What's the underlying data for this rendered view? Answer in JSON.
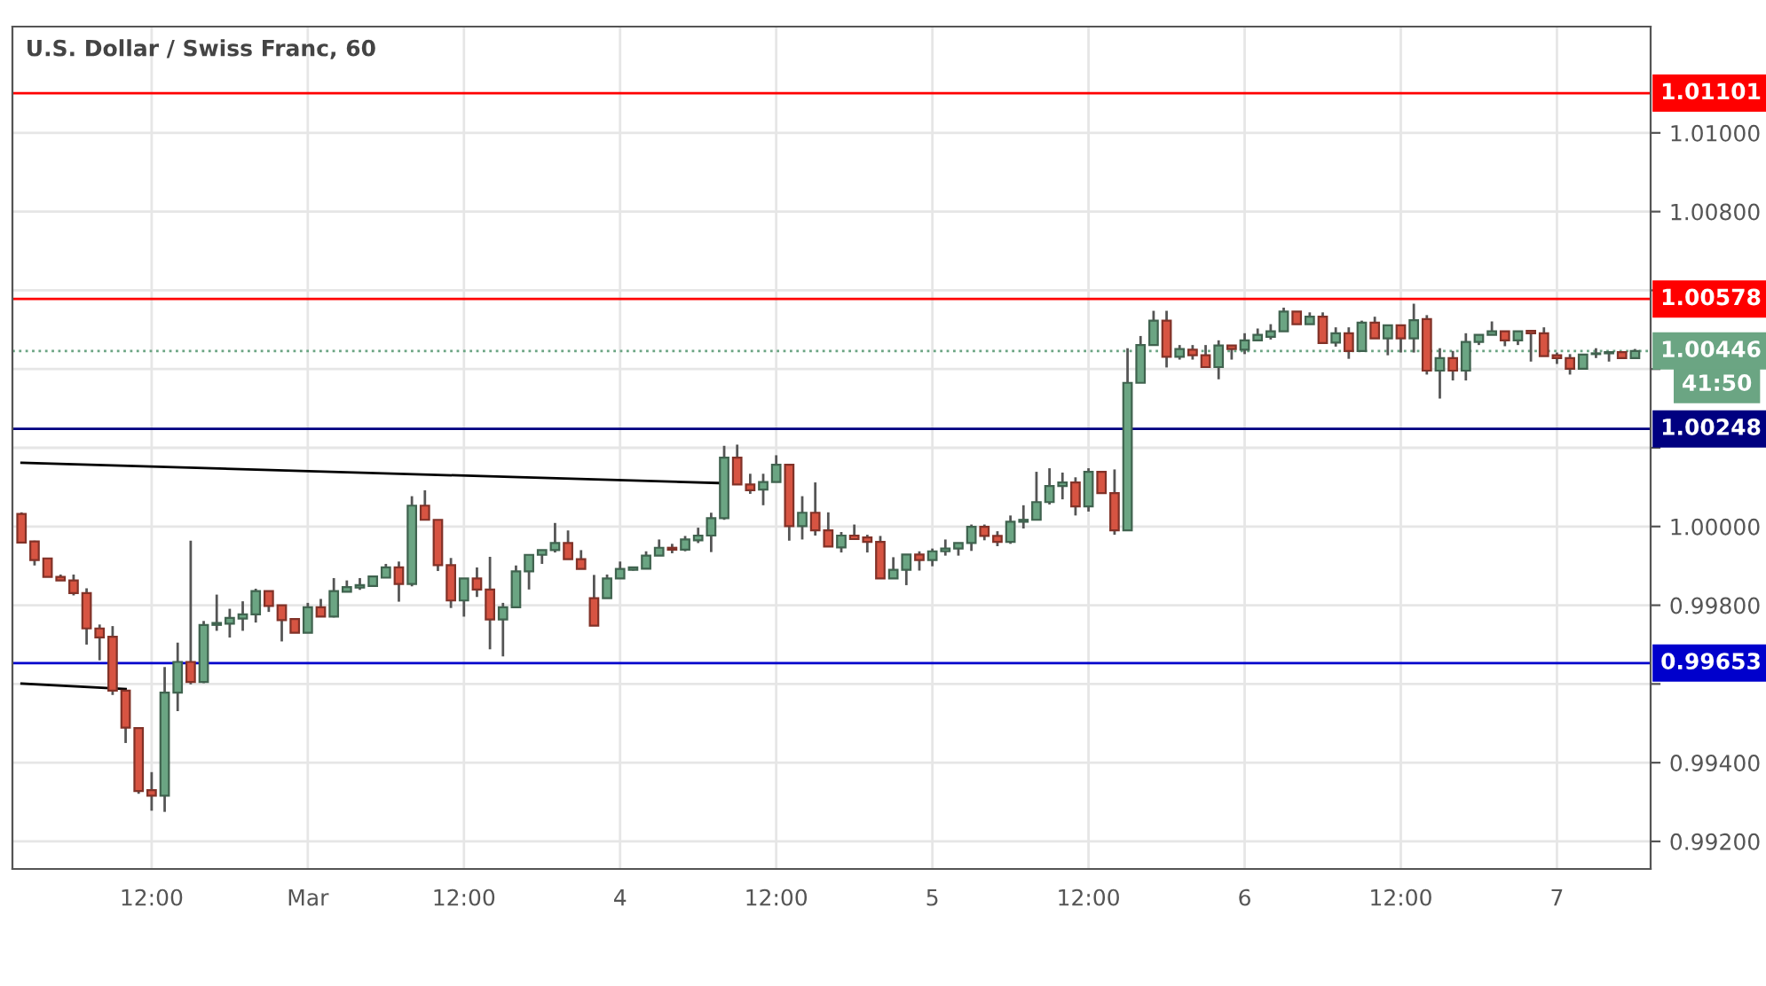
{
  "chart_data": {
    "type": "candlestick",
    "title": "U.S. Dollar / Swiss Franc, 60",
    "categories": [
      null,
      null,
      null,
      null,
      null,
      null,
      null,
      null,
      null,
      null,
      "12:00",
      null,
      null,
      null,
      null,
      null,
      null,
      null,
      null,
      null,
      null,
      null,
      "Mar",
      null,
      null,
      null,
      null,
      null,
      null,
      null,
      null,
      null,
      null,
      null,
      "12:00",
      null,
      null,
      null,
      null,
      null,
      null,
      null,
      null,
      null,
      null,
      null,
      "4",
      null,
      null,
      null,
      null,
      null,
      null,
      null,
      null,
      null,
      null,
      null,
      "12:00",
      null,
      null,
      null,
      null,
      null,
      null,
      null,
      null,
      null,
      null,
      null,
      "5",
      null,
      null,
      null,
      null,
      null,
      null,
      null,
      null,
      null,
      null,
      null,
      "12:00",
      null,
      null,
      null,
      null,
      null,
      null,
      null,
      null,
      null,
      null,
      null,
      "6",
      null,
      null,
      null,
      null,
      null,
      null,
      null,
      null,
      null,
      null,
      null,
      "12:00",
      null,
      null,
      null,
      null,
      null,
      null,
      null,
      null,
      null,
      null,
      null,
      "7",
      null,
      null,
      null,
      null,
      null,
      null
    ],
    "ohlc": [
      [
        1.00032,
        1.00036,
        0.99959,
        0.99959
      ],
      [
        0.99962,
        0.99964,
        0.99901,
        0.99915
      ],
      [
        0.99919,
        0.99919,
        0.99872,
        0.99872
      ],
      [
        0.99872,
        0.99878,
        0.99863,
        0.99863
      ],
      [
        0.99863,
        0.99878,
        0.99825,
        0.99831
      ],
      [
        0.99831,
        0.99843,
        0.997,
        0.99741
      ],
      [
        0.99741,
        0.99751,
        0.9966,
        0.99718
      ],
      [
        0.9972,
        0.99747,
        0.99572,
        0.99583
      ],
      [
        0.99583,
        0.99583,
        0.9945,
        0.99489
      ],
      [
        0.99488,
        0.99488,
        0.99321,
        0.99328
      ],
      [
        0.9933,
        0.99376,
        0.99278,
        0.99316
      ],
      [
        0.99316,
        0.99643,
        0.99275,
        0.99578
      ],
      [
        0.99578,
        0.99705,
        0.99531,
        0.99656
      ],
      [
        0.99656,
        0.99964,
        0.99599,
        0.99605
      ],
      [
        0.99605,
        0.9976,
        0.99602,
        0.9975
      ],
      [
        0.9975,
        0.99827,
        0.99735,
        0.99755
      ],
      [
        0.99753,
        0.99791,
        0.99718,
        0.99768
      ],
      [
        0.99766,
        0.9981,
        0.99735,
        0.99777
      ],
      [
        0.99777,
        0.99842,
        0.99756,
        0.99836
      ],
      [
        0.99836,
        0.99836,
        0.99783,
        0.99798
      ],
      [
        0.998,
        0.99801,
        0.99708,
        0.99762
      ],
      [
        0.99765,
        0.99765,
        0.9973,
        0.9973
      ],
      [
        0.9973,
        0.99806,
        0.9973,
        0.99795
      ],
      [
        0.99795,
        0.99816,
        0.99771,
        0.99771
      ],
      [
        0.99771,
        0.99869,
        0.99769,
        0.99836
      ],
      [
        0.99834,
        0.99863,
        0.99833,
        0.99846
      ],
      [
        0.99845,
        0.99869,
        0.99839,
        0.99851
      ],
      [
        0.99849,
        0.99873,
        0.99849,
        0.99873
      ],
      [
        0.9987,
        0.99905,
        0.9987,
        0.99896
      ],
      [
        0.99896,
        0.99911,
        0.99809,
        0.99854
      ],
      [
        0.99854,
        1.00077,
        0.99848,
        1.00053
      ],
      [
        1.00053,
        1.00092,
        1.00017,
        1.00017
      ],
      [
        1.00017,
        1.00017,
        0.99887,
        0.99902
      ],
      [
        0.99902,
        0.9992,
        0.99793,
        0.99812
      ],
      [
        0.99812,
        0.99868,
        0.99771,
        0.99868
      ],
      [
        0.99868,
        0.99896,
        0.99821,
        0.9984
      ],
      [
        0.9984,
        0.99923,
        0.99688,
        0.99764
      ],
      [
        0.99764,
        0.99806,
        0.9967,
        0.99795
      ],
      [
        0.99795,
        0.99901,
        0.99795,
        0.99886
      ],
      [
        0.99886,
        0.99928,
        0.9984,
        0.99928
      ],
      [
        0.99928,
        0.9994,
        0.99905,
        0.9994
      ],
      [
        0.9994,
        1.00009,
        0.99934,
        0.99958
      ],
      [
        0.99958,
        0.9999,
        0.99917,
        0.99917
      ],
      [
        0.99917,
        0.9994,
        0.99892,
        0.99892
      ],
      [
        0.99818,
        0.99877,
        0.99748,
        0.99748
      ],
      [
        0.99818,
        0.99878,
        0.99818,
        0.99868
      ],
      [
        0.99868,
        0.99911,
        0.99868,
        0.99892
      ],
      [
        0.9989,
        0.99897,
        0.99888,
        0.99896
      ],
      [
        0.99893,
        0.99937,
        0.99893,
        0.99926
      ],
      [
        0.99926,
        0.99967,
        0.99926,
        0.99946
      ],
      [
        0.99946,
        0.99956,
        0.99932,
        0.99941
      ],
      [
        0.99941,
        0.99976,
        0.99937,
        0.99967
      ],
      [
        0.99965,
        0.99997,
        0.99958,
        0.99977
      ],
      [
        0.99977,
        1.00035,
        0.99935,
        1.00021
      ],
      [
        1.00021,
        1.00205,
        1.00017,
        1.00175
      ],
      [
        1.00175,
        1.00208,
        1.00107,
        1.00107
      ],
      [
        1.00107,
        1.00134,
        1.00083,
        1.00092
      ],
      [
        1.00094,
        1.00134,
        1.00054,
        1.00113
      ],
      [
        1.00113,
        1.00181,
        1.00113,
        1.00157
      ],
      [
        1.00157,
        1.00157,
        0.99964,
        1.00001
      ],
      [
        1.00001,
        1.00077,
        0.99967,
        1.00035
      ],
      [
        1.00035,
        1.00112,
        0.99977,
        0.9999
      ],
      [
        0.9999,
        1.00036,
        0.99949,
        0.99949
      ],
      [
        0.99947,
        0.99986,
        0.99934,
        0.99977
      ],
      [
        0.99977,
        1.00005,
        0.99968,
        0.99968
      ],
      [
        0.99972,
        0.99979,
        0.99934,
        0.99961
      ],
      [
        0.99961,
        0.99976,
        0.99868,
        0.99868
      ],
      [
        0.99868,
        0.99922,
        0.99868,
        0.9989
      ],
      [
        0.9989,
        0.99929,
        0.99851,
        0.99929
      ],
      [
        0.99929,
        0.99937,
        0.99888,
        0.99915
      ],
      [
        0.99915,
        0.99944,
        0.99899,
        0.99937
      ],
      [
        0.99937,
        0.99967,
        0.99926,
        0.99944
      ],
      [
        0.99944,
        0.99958,
        0.99926,
        0.99958
      ],
      [
        0.99958,
        1.00005,
        0.99938,
        0.99999
      ],
      [
        0.99999,
        1.00005,
        0.99965,
        0.99976
      ],
      [
        0.99976,
        0.99988,
        0.9995,
        0.99961
      ],
      [
        0.99961,
        1.00028,
        0.99956,
        1.00012
      ],
      [
        1.00012,
        1.00054,
        0.99995,
        1.00017
      ],
      [
        1.00017,
        1.00139,
        1.00017,
        1.00062
      ],
      [
        1.00062,
        1.00148,
        1.00056,
        1.00103
      ],
      [
        1.00103,
        1.00137,
        1.00069,
        1.00112
      ],
      [
        1.00112,
        1.00125,
        1.00028,
        1.00051
      ],
      [
        1.00051,
        1.00148,
        1.00038,
        1.00139
      ],
      [
        1.00139,
        1.00139,
        1.00085,
        1.00085
      ],
      [
        1.00085,
        1.00145,
        0.99979,
        0.9999
      ],
      [
        0.9999,
        1.00453,
        0.9999,
        1.00365
      ],
      [
        1.00365,
        1.00484,
        1.00365,
        1.00461
      ],
      [
        1.00461,
        1.00548,
        1.00461,
        1.00523
      ],
      [
        1.00523,
        1.00548,
        1.00404,
        1.00431
      ],
      [
        1.00431,
        1.00461,
        1.00424,
        1.00451
      ],
      [
        1.00449,
        1.00461,
        1.00424,
        1.00435
      ],
      [
        1.00435,
        1.00461,
        1.00405,
        1.00405
      ],
      [
        1.00405,
        1.00473,
        1.00374,
        1.0046
      ],
      [
        1.0046,
        1.0046,
        1.00424,
        1.00451
      ],
      [
        1.00449,
        1.00491,
        1.00438,
        1.00473
      ],
      [
        1.00473,
        1.00503,
        1.00473,
        1.00487
      ],
      [
        1.00482,
        1.00514,
        1.00475,
        1.00496
      ],
      [
        1.00496,
        1.00556,
        1.00496,
        1.00546
      ],
      [
        1.00546,
        1.00546,
        1.00514,
        1.00514
      ],
      [
        1.00514,
        1.00544,
        1.00514,
        1.00533
      ],
      [
        1.00533,
        1.00544,
        1.00466,
        1.00466
      ],
      [
        1.00467,
        1.00506,
        1.00457,
        1.00491
      ],
      [
        1.00491,
        1.00506,
        1.00426,
        1.00446
      ],
      [
        1.00446,
        1.00523,
        1.00446,
        1.00518
      ],
      [
        1.00518,
        1.00533,
        1.00478,
        1.00478
      ],
      [
        1.00478,
        1.00511,
        1.00435,
        1.00511
      ],
      [
        1.00511,
        1.00511,
        1.00442,
        1.00478
      ],
      [
        1.00478,
        1.00566,
        1.00442,
        1.00524
      ],
      [
        1.00527,
        1.00537,
        1.00386,
        1.00396
      ],
      [
        1.00396,
        1.00453,
        1.00325,
        1.00428
      ],
      [
        1.00428,
        1.00446,
        1.00371,
        1.00396
      ],
      [
        1.00396,
        1.00491,
        1.00371,
        1.00469
      ],
      [
        1.00469,
        1.00487,
        1.00461,
        1.00487
      ],
      [
        1.00487,
        1.00521,
        1.00487,
        1.00496
      ],
      [
        1.00496,
        1.00496,
        1.00458,
        1.00473
      ],
      [
        1.00473,
        1.00496,
        1.00461,
        1.00496
      ],
      [
        1.00497,
        1.00497,
        1.00419,
        1.00491
      ],
      [
        1.00491,
        1.00506,
        1.00433,
        1.00433
      ],
      [
        1.00435,
        1.00442,
        1.00413,
        1.00428
      ],
      [
        1.00428,
        1.00438,
        1.00386,
        1.00401
      ],
      [
        1.00401,
        1.00437,
        1.00401,
        1.00437
      ],
      [
        1.00438,
        1.00453,
        1.00428,
        1.0044
      ],
      [
        1.0044,
        1.00443,
        1.00419,
        1.00443
      ],
      [
        1.00443,
        1.00443,
        1.00428,
        1.00428
      ],
      [
        1.00428,
        1.00451,
        1.00428,
        1.00446
      ]
    ],
    "colors": [
      "#d75442",
      "#d75442",
      "#d75442",
      "#d75442",
      "#d75442",
      "#d75442",
      "#d75442",
      "#d75442",
      "#d75442",
      "#d75442",
      "#d75442",
      "#6ba583",
      "#6ba583",
      "#d75442",
      "#6ba583",
      "#6ba583",
      "#6ba583",
      "#6ba583",
      "#6ba583",
      "#d75442",
      "#d75442",
      "#d75442",
      "#6ba583",
      "#d75442",
      "#6ba583",
      "#6ba583",
      "#6ba583",
      "#6ba583",
      "#6ba583",
      "#d75442",
      "#6ba583",
      "#d75442",
      "#d75442",
      "#d75442",
      "#6ba583",
      "#d75442",
      "#d75442",
      "#6ba583",
      "#6ba583",
      "#6ba583",
      "#6ba583",
      "#6ba583",
      "#d75442",
      "#d75442",
      "#d75442",
      "#6ba583",
      "#6ba583",
      "#6ba583",
      "#6ba583",
      "#6ba583",
      "#d75442",
      "#6ba583",
      "#6ba583",
      "#6ba583",
      "#6ba583",
      "#d75442",
      "#d75442",
      "#6ba583",
      "#6ba583",
      "#d75442",
      "#6ba583",
      "#d75442",
      "#d75442",
      "#6ba583",
      "#d75442",
      "#d75442",
      "#d75442",
      "#6ba583",
      "#6ba583",
      "#d75442",
      "#6ba583",
      "#6ba583",
      "#6ba583",
      "#6ba583",
      "#d75442",
      "#d75442",
      "#6ba583",
      "#6ba583",
      "#6ba583",
      "#6ba583",
      "#6ba583",
      "#d75442",
      "#6ba583",
      "#d75442",
      "#d75442",
      "#6ba583",
      "#6ba583",
      "#6ba583",
      "#d75442",
      "#6ba583",
      "#d75442",
      "#d75442",
      "#6ba583",
      "#d75442",
      "#6ba583",
      "#6ba583",
      "#6ba583",
      "#6ba583",
      "#d75442",
      "#6ba583",
      "#d75442",
      "#6ba583",
      "#d75442",
      "#6ba583",
      "#d75442",
      "#6ba583",
      "#d75442",
      "#6ba583",
      "#d75442",
      "#6ba583",
      "#d75442",
      "#6ba583",
      "#6ba583",
      "#6ba583",
      "#d75442",
      "#6ba583",
      "#d75442",
      "#d75442",
      "#d75442",
      "#d75442",
      "#6ba583",
      "#6ba583",
      "#6ba583",
      "#d75442",
      "#6ba583"
    ],
    "series": [
      {
        "type": "line",
        "color": "#000000",
        "values": [
          1.00162,
          null,
          null,
          null,
          null,
          null,
          null,
          null,
          null,
          null,
          null,
          null,
          null,
          null,
          null,
          null,
          null,
          null,
          null,
          null,
          null,
          null,
          null,
          null,
          null,
          null,
          null,
          null,
          null,
          null,
          null,
          null,
          null,
          null,
          null,
          null,
          null,
          null,
          null,
          null,
          null,
          null,
          null,
          null,
          null,
          null,
          null,
          null,
          null,
          null,
          null,
          null,
          null,
          null,
          1.0011,
          null,
          null,
          null,
          null,
          null,
          null,
          null,
          null,
          null,
          null,
          null,
          null,
          null,
          null,
          null,
          null,
          null,
          null,
          null,
          null,
          null,
          null,
          null,
          null,
          null,
          null,
          null,
          null,
          null,
          null,
          null,
          null,
          null,
          null,
          null,
          null,
          null,
          null,
          null,
          null,
          null,
          null,
          null,
          null,
          null,
          null,
          null,
          null,
          null,
          null,
          null,
          null,
          null,
          null,
          null,
          null,
          null,
          null,
          null,
          null,
          null,
          null,
          null,
          null,
          null,
          null,
          null,
          null,
          null,
          null
        ]
      },
      {
        "type": "line",
        "color": "#000000",
        "values": [
          0.99601,
          null,
          null,
          null,
          null,
          null,
          null,
          null,
          0.99587,
          null,
          null,
          null,
          null,
          null,
          null,
          null,
          null,
          null,
          null,
          null,
          null,
          null,
          null,
          null,
          null,
          null,
          null,
          null,
          null,
          null,
          null,
          null,
          null,
          null,
          null,
          null,
          null,
          null,
          null,
          null,
          null,
          null,
          null,
          null,
          null,
          null,
          null,
          null,
          null,
          null,
          null,
          null,
          null,
          null,
          null,
          null,
          null,
          null,
          null,
          null,
          null,
          null,
          null,
          null,
          null,
          null,
          null,
          null,
          null,
          null,
          null,
          null,
          null,
          null,
          null,
          null,
          null,
          null,
          null,
          null,
          null,
          null,
          null,
          null,
          null,
          null,
          null,
          null,
          null,
          null,
          null,
          null,
          null,
          null,
          null,
          null,
          null,
          null,
          null,
          null,
          null,
          null,
          null,
          null,
          null,
          null,
          null,
          null,
          null,
          null,
          null,
          null,
          null,
          null,
          null,
          null,
          null,
          null,
          null,
          null,
          null,
          null,
          null,
          null,
          null
        ]
      }
    ],
    "ylim": [
      0.9913,
      1.0127
    ],
    "yticks": [
      {
        "value": 0.992,
        "label": "0.99200"
      },
      {
        "value": 0.994,
        "label": "0.99400"
      },
      {
        "value": 0.996,
        "label": null
      },
      {
        "value": 0.998,
        "label": "0.99800"
      },
      {
        "value": 1.0,
        "label": "1.00000"
      },
      {
        "value": 1.002,
        "label": null
      },
      {
        "value": 1.004,
        "label": null
      },
      {
        "value": 1.006,
        "label": null
      },
      {
        "value": 1.008,
        "label": "1.00800"
      },
      {
        "value": 1.01,
        "label": "1.01000"
      }
    ],
    "ref_lines": [
      {
        "axis": "y",
        "value": 1.01101,
        "label": "1.01101",
        "color": "#ff0000"
      },
      {
        "axis": "y",
        "value": 1.00578,
        "label": "1.00578",
        "color": "#ff0000"
      },
      {
        "axis": "y",
        "value": 1.00446,
        "label": "1.00446",
        "color": "#6ba583",
        "line_style": "dotted"
      },
      {
        "axis": "y",
        "value": 1.00248,
        "label": "1.00248",
        "color": "#000080"
      },
      {
        "axis": "y",
        "value": 0.99653,
        "label": "0.99653",
        "color": "#0000cc"
      }
    ],
    "annotations": [
      "41:50"
    ],
    "grid": true,
    "legend": false
  }
}
